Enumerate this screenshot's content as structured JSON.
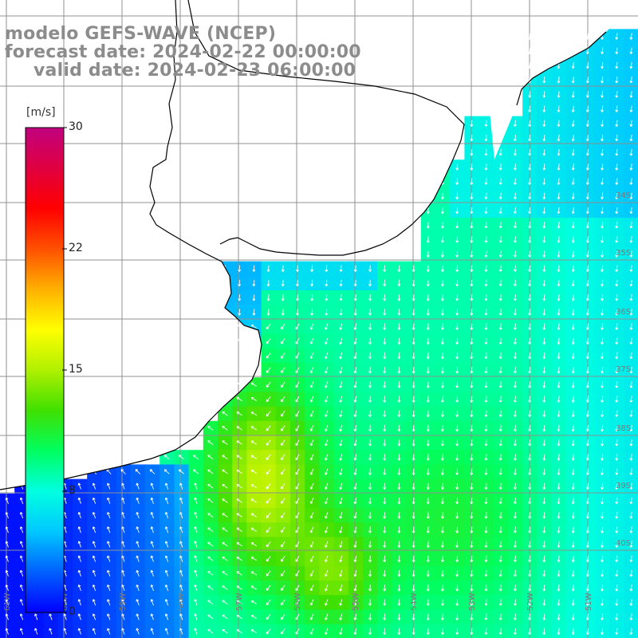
{
  "title": {
    "line1": "modelo GEFS-WAVE (NCEP)",
    "line2": "forecast date: 2024-02-22 00:00:00",
    "line3": "valid date: 2024-02-23 06:00:00"
  },
  "colorbar": {
    "unit": "[m/s]",
    "min": 0,
    "max": 30,
    "ticks": [
      "30",
      "22",
      "15",
      "8",
      "0"
    ],
    "colors": [
      "#0000ff",
      "#0060ff",
      "#00c8ff",
      "#00ffe0",
      "#00ff60",
      "#40e000",
      "#b0f000",
      "#ffff00",
      "#ffb000",
      "#ff5000",
      "#ff0000",
      "#e00040",
      "#c00080"
    ]
  },
  "map": {
    "lat_labels": [
      "34S",
      "35S",
      "36S",
      "37S",
      "38S",
      "39S",
      "40S"
    ],
    "lon_labels": [
      "61W",
      "60W",
      "59W",
      "58W",
      "57W",
      "56W",
      "55W",
      "54W",
      "53W",
      "52W",
      "51W"
    ],
    "land_color": "#ffffff",
    "grid_color": "#909090",
    "coast_color": "#000000",
    "vector_color": "#ffffff"
  },
  "chart_data": {
    "type": "heatmap",
    "title": "modelo GEFS-WAVE (NCEP)",
    "variable": "wind speed",
    "unit": "m/s",
    "colorbar_range": [
      0,
      30
    ],
    "max_region_value_approx": 16,
    "typical_offshore_value_approx": 9,
    "calm_coastal_value_approx": 2
  }
}
